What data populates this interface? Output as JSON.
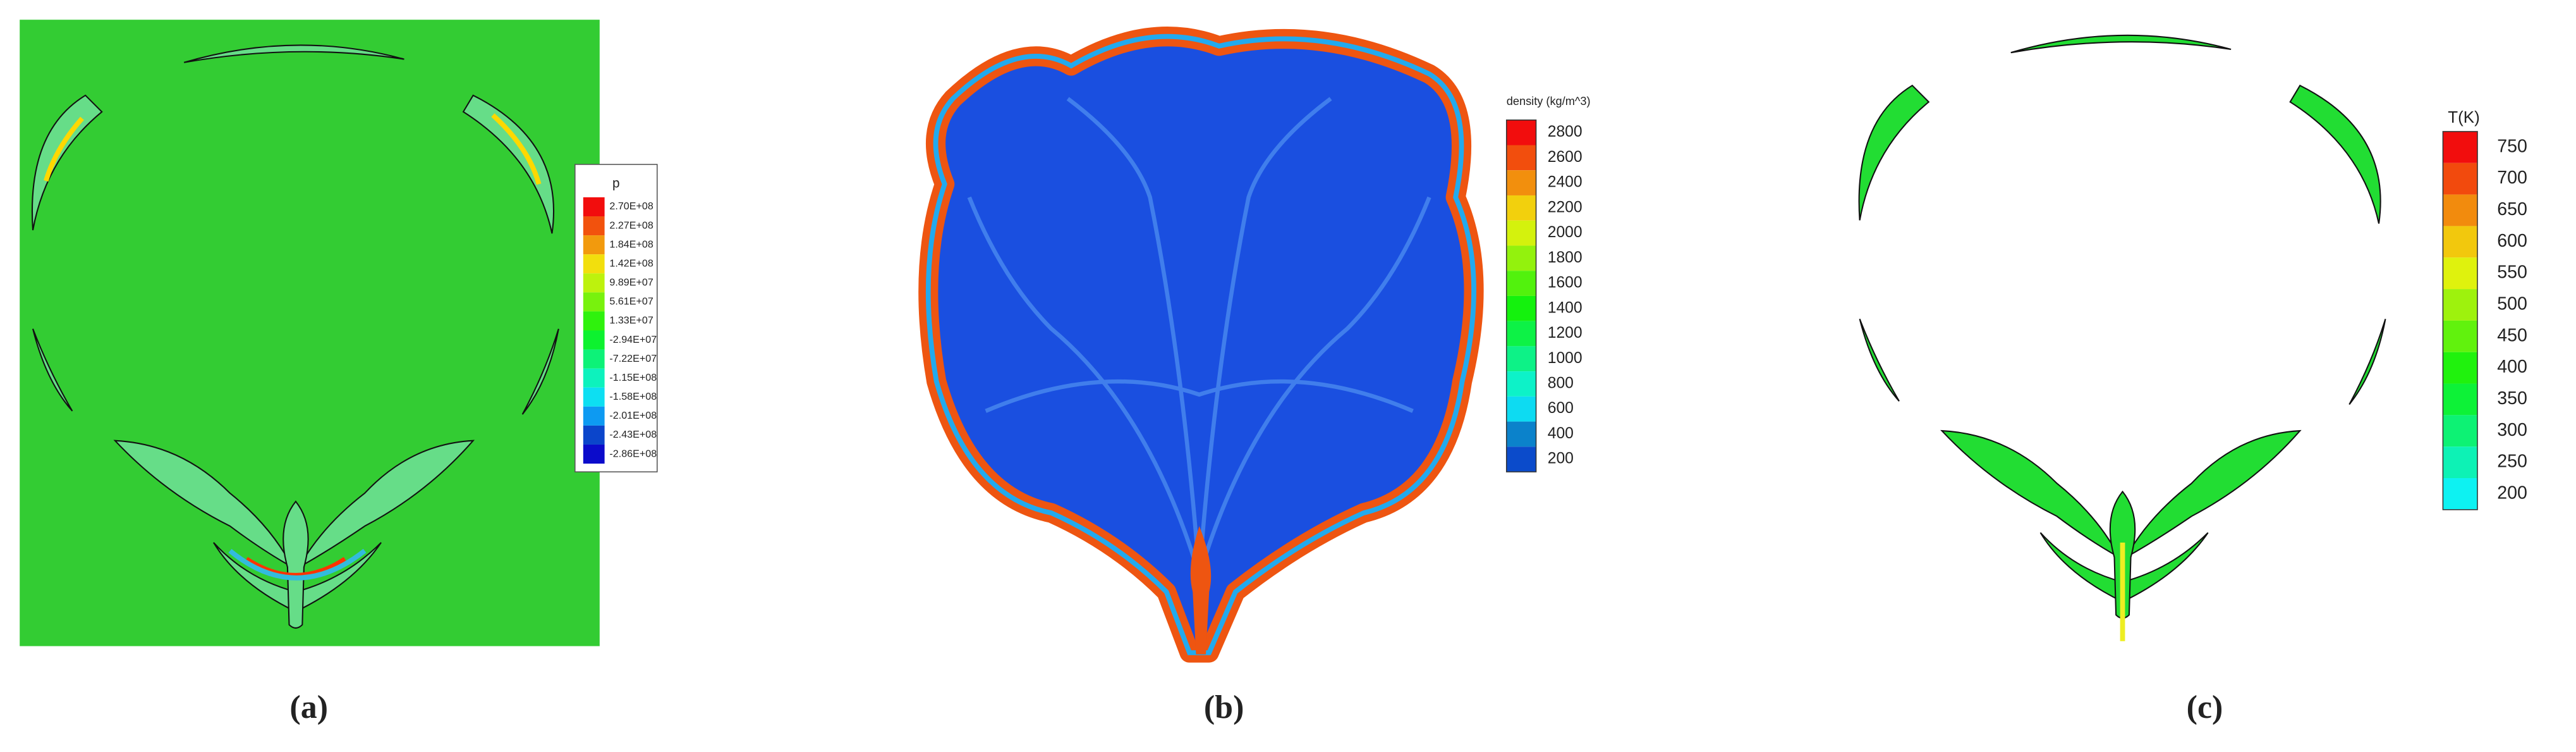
{
  "panels": [
    {
      "label": "(a)",
      "legend": {
        "title": "p",
        "labels": [
          "2.70E+08",
          "2.27E+08",
          "1.84E+08",
          "1.42E+08",
          "9.89E+07",
          "5.61E+07",
          "1.33E+07",
          "-2.94E+07",
          "-7.22E+07",
          "-1.15E+08",
          "-1.58E+08",
          "-2.01E+08",
          "-2.43E+08",
          "-2.86E+08"
        ]
      }
    },
    {
      "label": "(b)",
      "legend": {
        "title": "density (kg/m^3)",
        "labels": [
          "2800",
          "2600",
          "2400",
          "2200",
          "2000",
          "1800",
          "1600",
          "1400",
          "1200",
          "1000",
          "800",
          "600",
          "400",
          "200"
        ]
      }
    },
    {
      "label": "(c)",
      "legend": {
        "title": "T(K)",
        "labels": [
          "750",
          "700",
          "650",
          "600",
          "550",
          "500",
          "450",
          "400",
          "350",
          "300",
          "250",
          "200"
        ]
      }
    }
  ]
}
